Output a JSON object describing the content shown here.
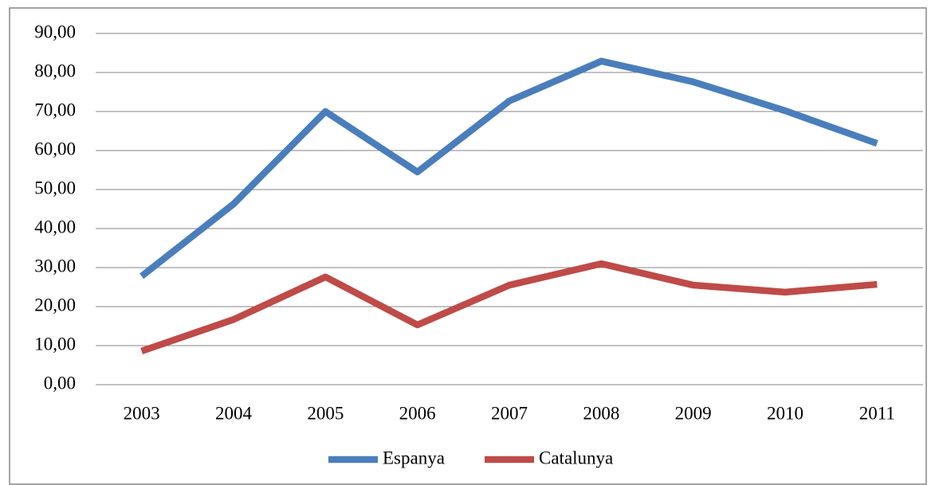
{
  "chart_data": {
    "type": "line",
    "categories": [
      "2003",
      "2004",
      "2005",
      "2006",
      "2007",
      "2008",
      "2009",
      "2010",
      "2011"
    ],
    "series": [
      {
        "name": "Espanya",
        "color": "#4a7ebb",
        "values": [
          27.8,
          46.3,
          70.0,
          54.5,
          72.7,
          82.9,
          77.6,
          70.2,
          61.8
        ]
      },
      {
        "name": "Catalunya",
        "color": "#be4b48",
        "values": [
          8.6,
          16.7,
          27.6,
          15.3,
          25.5,
          31.0,
          25.5,
          23.7,
          25.7
        ]
      }
    ],
    "ylim": [
      0,
      90
    ],
    "yticks": [
      {
        "value": 0,
        "label": "0,00"
      },
      {
        "value": 10,
        "label": "10,00"
      },
      {
        "value": 20,
        "label": "20,00"
      },
      {
        "value": 30,
        "label": "30,00"
      },
      {
        "value": 40,
        "label": "40,00"
      },
      {
        "value": 50,
        "label": "50,00"
      },
      {
        "value": 60,
        "label": "60,00"
      },
      {
        "value": 70,
        "label": "70,00"
      },
      {
        "value": 80,
        "label": "80,00"
      },
      {
        "value": 90,
        "label": "90,00"
      }
    ],
    "grid": true,
    "legend": "bottom"
  }
}
